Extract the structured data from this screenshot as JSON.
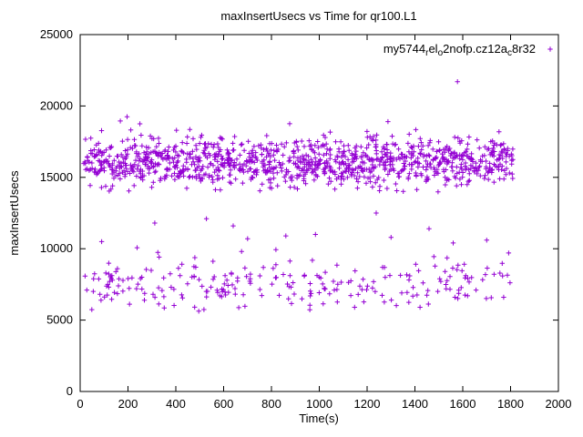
{
  "figure": {
    "background": "#ffffff",
    "border_color": "#000000",
    "accent_color": "#9400D3"
  },
  "chart_data": {
    "type": "scatter",
    "title": "maxInsertUsecs vs Time for qr100.L1",
    "xlabel": "Time(s)",
    "ylabel": "maxInsertUsecs",
    "xlim": [
      0,
      2000
    ],
    "ylim": [
      0,
      25000
    ],
    "x_ticks": [
      0,
      200,
      400,
      600,
      800,
      1000,
      1200,
      1400,
      1600,
      1800,
      2000
    ],
    "y_ticks": [
      0,
      5000,
      10000,
      15000,
      20000,
      25000
    ],
    "grid": false,
    "legend_position": "top-right-inside",
    "series": [
      {
        "name": "my5744_rel_o2nofp.cz12a_c8r32",
        "label_parts": [
          {
            "text": "my5744",
            "sub": false
          },
          {
            "text": "r",
            "sub": true
          },
          {
            "text": "el",
            "sub": false
          },
          {
            "text": "o",
            "sub": true
          },
          {
            "text": "2nofp.cz12a",
            "sub": false
          },
          {
            "text": "c",
            "sub": true
          },
          {
            "text": "8r32",
            "sub": false
          }
        ],
        "marker": "plus",
        "color": "#9400D3",
        "seed": 20240521,
        "x_range": [
          15,
          1810
        ],
        "clusters": [
          {
            "name": "upper-band",
            "count": 1150,
            "y_mean": 16100,
            "y_std": 850,
            "y_min": 13900,
            "y_max": 19400
          },
          {
            "name": "lower-band",
            "count": 245,
            "y_mean": 7400,
            "y_std": 900,
            "y_min": 5600,
            "y_max": 10100
          }
        ],
        "outliers": [
          [
            1578,
            21700
          ],
          [
            196,
            19250
          ],
          [
            168,
            18950
          ],
          [
            90,
            10500
          ],
          [
            312,
            11800
          ],
          [
            528,
            12100
          ],
          [
            640,
            11600
          ],
          [
            700,
            10700
          ],
          [
            860,
            10900
          ],
          [
            984,
            11000
          ],
          [
            1238,
            12500
          ],
          [
            1300,
            10800
          ],
          [
            1459,
            11400
          ],
          [
            1560,
            10400
          ],
          [
            1700,
            10600
          ],
          [
            1792,
            9700
          ]
        ]
      }
    ]
  }
}
